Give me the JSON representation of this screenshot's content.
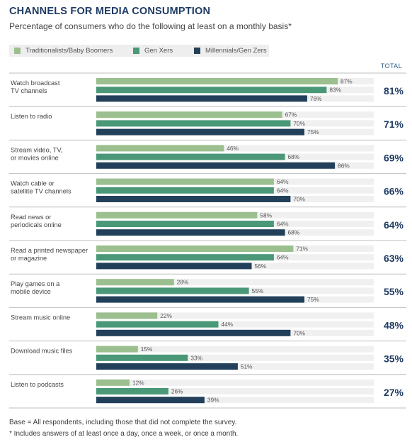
{
  "header": {
    "title": "CHANNELS FOR MEDIA CONSUMPTION",
    "subtitle": "Percentage of consumers who do the following at least on a monthly basis*"
  },
  "total_header": "TOTAL",
  "colors": {
    "trad": "#9bbf8e",
    "genx": "#4a9878",
    "mill": "#22405a",
    "track": "#f0f0f0"
  },
  "footnotes": {
    "base": "Base = All respondents, including those that did not complete the survey.",
    "note": "* Includes answers of at least once a day, once a week, or once a month."
  },
  "chart_data": {
    "type": "bar",
    "orientation": "horizontal",
    "grouped": true,
    "xlim": [
      0,
      100
    ],
    "legend_position": "top",
    "categories": [
      [
        "Watch broadcast",
        "TV channels"
      ],
      [
        "Listen to radio"
      ],
      [
        "Stream video, TV,",
        "or movies online"
      ],
      [
        "Watch cable or",
        "satellite TV channels"
      ],
      [
        "Read news or",
        "periodicals online"
      ],
      [
        "Read a printed newspaper",
        "or magazine"
      ],
      [
        "Play games on a",
        "mobile device"
      ],
      [
        "Stream music online"
      ],
      [
        "Download music files"
      ],
      [
        "Listen to podcasts"
      ]
    ],
    "series": [
      {
        "name": "Traditionalists/Baby Boomers",
        "color": "#9bbf8e",
        "values": [
          87,
          67,
          46,
          64,
          58,
          71,
          28,
          22,
          15,
          12
        ]
      },
      {
        "name": "Gen Xers",
        "color": "#4a9878",
        "values": [
          83,
          70,
          68,
          64,
          64,
          64,
          55,
          44,
          33,
          26
        ]
      },
      {
        "name": "Millennials/Gen Zers",
        "color": "#22405a",
        "values": [
          76,
          75,
          86,
          70,
          68,
          56,
          75,
          70,
          51,
          39
        ]
      }
    ],
    "totals": [
      81,
      71,
      69,
      66,
      64,
      63,
      55,
      48,
      35,
      27
    ],
    "value_suffix": "%"
  }
}
